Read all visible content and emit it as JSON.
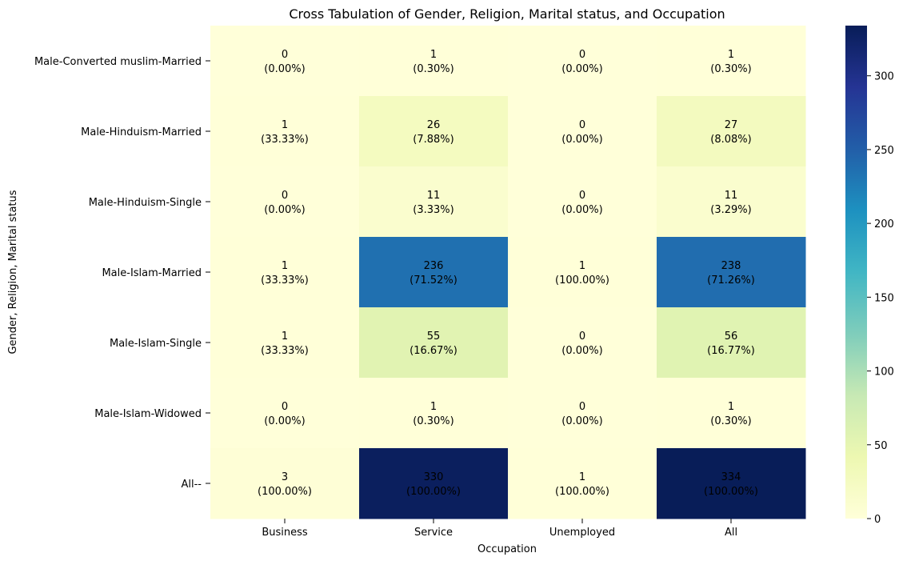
{
  "chart_data": {
    "type": "heatmap",
    "title": "Cross Tabulation of Gender, Religion, Marital status, and Occupation",
    "xlabel": "Occupation",
    "ylabel": "Gender, Religion, Marital status",
    "columns": [
      "Business",
      "Service",
      "Unemployed",
      "All"
    ],
    "rows": [
      "Male-Converted muslim-Married",
      "Male-Hinduism-Married",
      "Male-Hinduism-Single",
      "Male-Islam-Married",
      "Male-Islam-Single",
      "Male-Islam-Widowed",
      "All--"
    ],
    "values": [
      [
        0,
        1,
        0,
        1
      ],
      [
        1,
        26,
        0,
        27
      ],
      [
        0,
        11,
        0,
        11
      ],
      [
        1,
        236,
        1,
        238
      ],
      [
        1,
        55,
        0,
        56
      ],
      [
        0,
        1,
        0,
        1
      ],
      [
        3,
        330,
        1,
        334
      ]
    ],
    "percentages": [
      [
        "(0.00%)",
        "(0.30%)",
        "(0.00%)",
        "(0.30%)"
      ],
      [
        "(33.33%)",
        "(7.88%)",
        "(0.00%)",
        "(8.08%)"
      ],
      [
        "(0.00%)",
        "(3.33%)",
        "(0.00%)",
        "(3.29%)"
      ],
      [
        "(33.33%)",
        "(71.52%)",
        "(100.00%)",
        "(71.26%)"
      ],
      [
        "(33.33%)",
        "(16.67%)",
        "(0.00%)",
        "(16.77%)"
      ],
      [
        "(0.00%)",
        "(0.30%)",
        "(0.00%)",
        "(0.30%)"
      ],
      [
        "(100.00%)",
        "(100.00%)",
        "(100.00%)",
        "(100.00%)"
      ]
    ],
    "colormap": "YlGnBu",
    "color_range": [
      0,
      334
    ],
    "colorbar_ticks": [
      0,
      50,
      100,
      150,
      200,
      250,
      300
    ]
  }
}
